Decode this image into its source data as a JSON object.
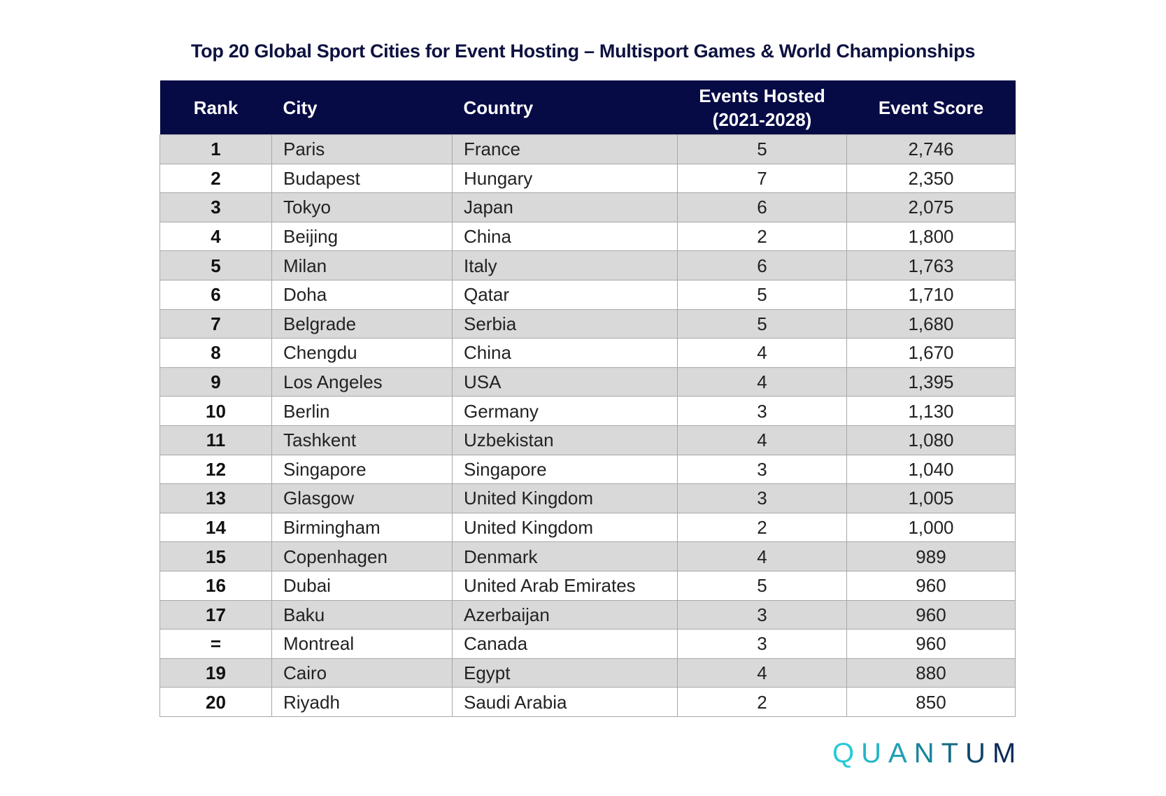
{
  "title": "Top 20 Global Sport Cities for Event Hosting – Multisport Games & World Championships",
  "table": {
    "headers": {
      "rank": "Rank",
      "city": "City",
      "country": "Country",
      "events_line1": "Events Hosted",
      "events_line2": "(2021-2028)",
      "score": "Event Score"
    },
    "rows": [
      {
        "rank": "1",
        "city": "Paris",
        "country": "France",
        "events": "5",
        "score": "2,746"
      },
      {
        "rank": "2",
        "city": "Budapest",
        "country": "Hungary",
        "events": "7",
        "score": "2,350"
      },
      {
        "rank": "3",
        "city": "Tokyo",
        "country": "Japan",
        "events": "6",
        "score": "2,075"
      },
      {
        "rank": "4",
        "city": "Beijing",
        "country": "China",
        "events": "2",
        "score": "1,800"
      },
      {
        "rank": "5",
        "city": "Milan",
        "country": "Italy",
        "events": "6",
        "score": "1,763"
      },
      {
        "rank": "6",
        "city": "Doha",
        "country": "Qatar",
        "events": "5",
        "score": "1,710"
      },
      {
        "rank": "7",
        "city": "Belgrade",
        "country": "Serbia",
        "events": "5",
        "score": "1,680"
      },
      {
        "rank": "8",
        "city": "Chengdu",
        "country": "China",
        "events": "4",
        "score": "1,670"
      },
      {
        "rank": "9",
        "city": "Los Angeles",
        "country": "USA",
        "events": "4",
        "score": "1,395"
      },
      {
        "rank": "10",
        "city": "Berlin",
        "country": "Germany",
        "events": "3",
        "score": "1,130"
      },
      {
        "rank": "11",
        "city": "Tashkent",
        "country": "Uzbekistan",
        "events": "4",
        "score": "1,080"
      },
      {
        "rank": "12",
        "city": "Singapore",
        "country": "Singapore",
        "events": "3",
        "score": "1,040"
      },
      {
        "rank": "13",
        "city": "Glasgow",
        "country": "United Kingdom",
        "events": "3",
        "score": "1,005"
      },
      {
        "rank": "14",
        "city": "Birmingham",
        "country": "United Kingdom",
        "events": "2",
        "score": "1,000"
      },
      {
        "rank": "15",
        "city": "Copenhagen",
        "country": "Denmark",
        "events": "4",
        "score": "989"
      },
      {
        "rank": "16",
        "city": "Dubai",
        "country": "United Arab Emirates",
        "events": "5",
        "score": "960"
      },
      {
        "rank": "17",
        "city": "Baku",
        "country": "Azerbaijan",
        "events": "3",
        "score": "960"
      },
      {
        "rank": "=",
        "city": "Montreal",
        "country": "Canada",
        "events": "3",
        "score": "960"
      },
      {
        "rank": "19",
        "city": "Cairo",
        "country": "Egypt",
        "events": "4",
        "score": "880"
      },
      {
        "rank": "20",
        "city": "Riyadh",
        "country": "Saudi Arabia",
        "events": "2",
        "score": "850"
      }
    ]
  },
  "logo": {
    "text": "QUANTUM",
    "colors": [
      "#27c9d6",
      "#22b6c8",
      "#1d9fb3",
      "#17849b",
      "#146a83",
      "#10476b",
      "#0b2a57"
    ]
  },
  "colors": {
    "header_bg": "#060a45",
    "title": "#0d1240",
    "row_alt": "#d9d9d9"
  }
}
